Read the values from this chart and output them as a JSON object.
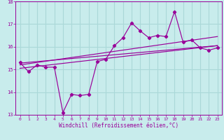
{
  "xlabel": "Windchill (Refroidissement éolien,°C)",
  "background_color": "#c8ecec",
  "grid_color": "#aad8d8",
  "line_color": "#990099",
  "xlim": [
    -0.5,
    23.5
  ],
  "ylim": [
    13,
    18
  ],
  "xticks": [
    0,
    1,
    2,
    3,
    4,
    5,
    6,
    7,
    8,
    9,
    10,
    11,
    12,
    13,
    14,
    15,
    16,
    17,
    18,
    19,
    20,
    21,
    22,
    23
  ],
  "yticks": [
    13,
    14,
    15,
    16,
    17,
    18
  ],
  "data_x": [
    0,
    1,
    2,
    3,
    4,
    5,
    6,
    7,
    8,
    9,
    10,
    11,
    12,
    13,
    14,
    15,
    16,
    17,
    18,
    19,
    20,
    21,
    22,
    23
  ],
  "data_y": [
    15.3,
    14.9,
    15.2,
    15.1,
    15.1,
    13.1,
    13.9,
    13.85,
    13.9,
    15.35,
    15.45,
    16.05,
    16.4,
    17.05,
    16.7,
    16.4,
    16.5,
    16.45,
    17.55,
    16.2,
    16.3,
    15.95,
    15.85,
    15.95
  ],
  "trend1_x": [
    0,
    23
  ],
  "trend1_y": [
    15.05,
    16.05
  ],
  "trend2_x": [
    0,
    23
  ],
  "trend2_y": [
    15.2,
    16.45
  ],
  "trend3_x": [
    0,
    23
  ],
  "trend3_y": [
    15.28,
    16.05
  ]
}
